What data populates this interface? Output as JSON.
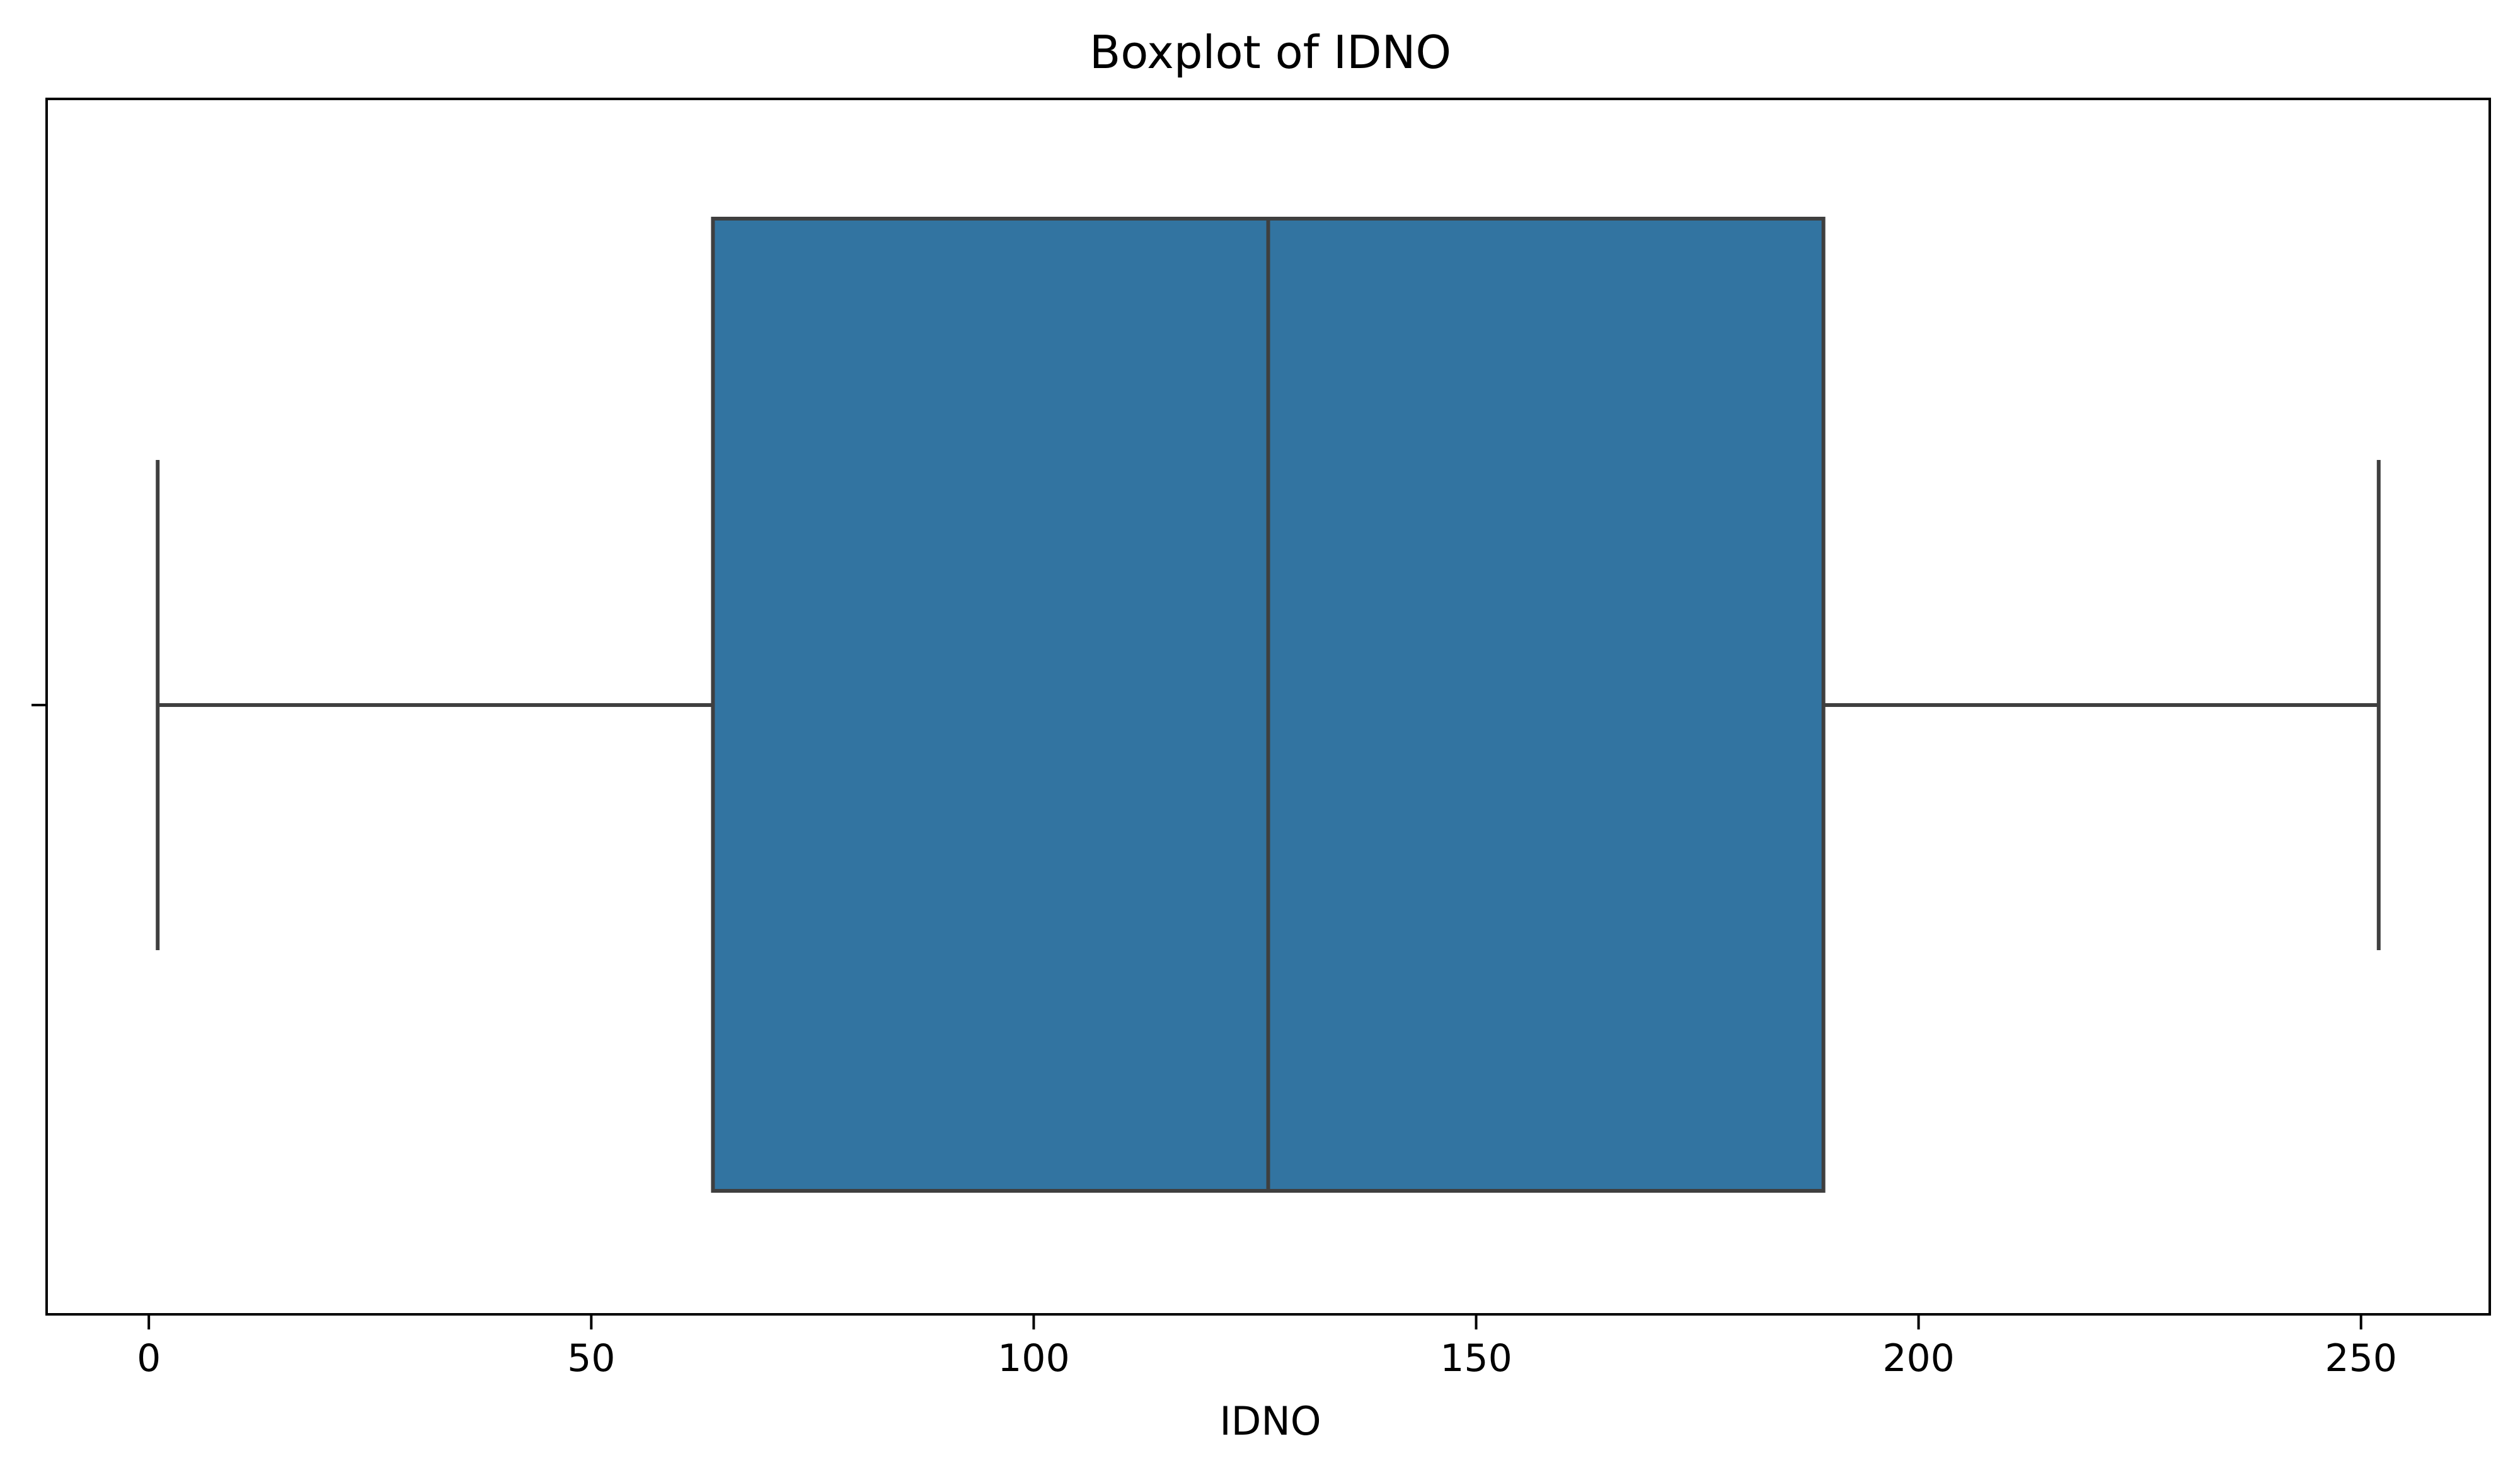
{
  "chart_data": {
    "type": "boxplot",
    "title": "Boxplot of IDNO",
    "xlabel": "IDNO",
    "ylabel": "",
    "xlim": [
      -11.55,
      264.55
    ],
    "xticks": [
      0,
      50,
      100,
      150,
      200,
      250
    ],
    "xtick_labels": [
      "0",
      "50",
      "100",
      "150",
      "200",
      "250"
    ],
    "orientation": "horizontal",
    "grid": false,
    "series": [
      {
        "whisker_low": 1,
        "q1": 63.75,
        "median": 126.5,
        "q3": 189.25,
        "whisker_high": 252
      }
    ],
    "colors": {
      "box_fill": "#3274a1",
      "line": "#3f3f3f",
      "axes": "#000000"
    }
  }
}
